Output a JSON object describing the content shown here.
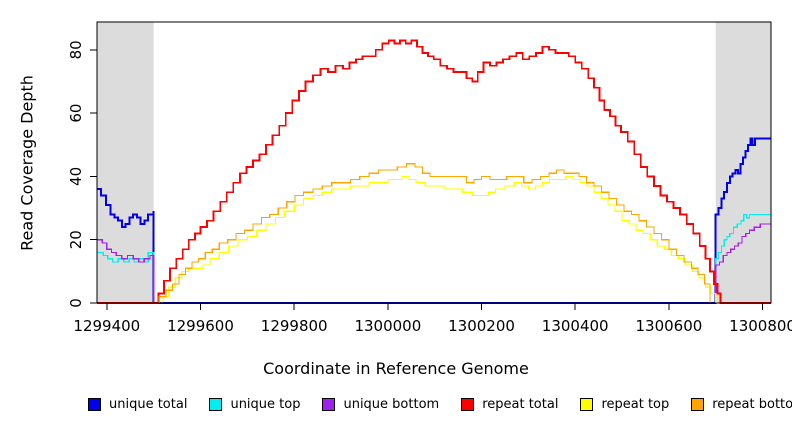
{
  "figure": {
    "xlabel": "Coordinate in Reference Genome",
    "ylabel": "Read Coverage Depth"
  },
  "chart_data": {
    "type": "line",
    "line_style": "step",
    "title": "",
    "xlabel": "Coordinate in Reference Genome",
    "ylabel": "Read Coverage Depth",
    "xlim": [
      1299379,
      1300818
    ],
    "ylim": [
      0,
      88.8
    ],
    "xticks": [
      1299400,
      1299600,
      1299800,
      1300000,
      1300200,
      1300400,
      1300600,
      1300800
    ],
    "yticks": [
      0,
      20,
      40,
      60,
      80
    ],
    "grid": false,
    "legend_position": "bottom",
    "shaded_regions": {
      "color": "#DCDCDC",
      "ranges": [
        [
          1299379,
          1299500
        ],
        [
          1300700,
          1300818
        ]
      ]
    },
    "series": [
      {
        "name": "unique total",
        "color": "#0000EE",
        "width": 2,
        "x": [
          1299379,
          1299388,
          1299398,
          1299408,
          1299416,
          1299424,
          1299432,
          1299440,
          1299448,
          1299456,
          1299464,
          1299472,
          1299480,
          1299488,
          1299500,
          1299500,
          1300700,
          1300700,
          1300706,
          1300712,
          1300718,
          1300724,
          1300730,
          1300736,
          1300742,
          1300748,
          1300753,
          1300758,
          1300764,
          1300769,
          1300774,
          1300779,
          1300784,
          1300818
        ],
        "y": [
          36,
          34,
          31,
          28,
          27,
          26,
          24,
          25,
          27,
          28,
          27,
          25,
          26,
          28,
          29,
          0,
          0,
          28,
          30,
          33,
          35,
          38,
          40,
          41,
          42,
          41,
          44,
          46,
          48,
          50,
          52,
          50,
          52,
          52
        ]
      },
      {
        "name": "unique top",
        "color": "#00EEEE",
        "width": 1.3,
        "x": [
          1299379,
          1299392,
          1299402,
          1299412,
          1299424,
          1299436,
          1299448,
          1299458,
          1299468,
          1299478,
          1299488,
          1299500,
          1299500,
          1300700,
          1300700,
          1300706,
          1300712,
          1300718,
          1300724,
          1300730,
          1300738,
          1300746,
          1300754,
          1300760,
          1300766,
          1300772,
          1300780,
          1300818
        ],
        "y": [
          16,
          15,
          14,
          13,
          14,
          13,
          14,
          13,
          14,
          13,
          16,
          16,
          0,
          0,
          14,
          16,
          18,
          20,
          21,
          22,
          24,
          25,
          26,
          28,
          27,
          28,
          28,
          28
        ]
      },
      {
        "name": "unique bottom",
        "color": "#A020F0",
        "width": 1.3,
        "x": [
          1299379,
          1299390,
          1299400,
          1299410,
          1299420,
          1299432,
          1299444,
          1299456,
          1299468,
          1299480,
          1299492,
          1299500,
          1299500,
          1300700,
          1300700,
          1300708,
          1300716,
          1300724,
          1300732,
          1300740,
          1300748,
          1300756,
          1300764,
          1300772,
          1300782,
          1300795,
          1300818
        ],
        "y": [
          20,
          19,
          17,
          16,
          15,
          14,
          15,
          14,
          13,
          14,
          15,
          15,
          0,
          0,
          12,
          13,
          15,
          16,
          17,
          18,
          19,
          21,
          22,
          23,
          24,
          25,
          25
        ]
      },
      {
        "name": "repeat total",
        "color": "#FF0000",
        "width": 1.8,
        "x": [
          1299379,
          1299500,
          1299510,
          1299522,
          1299535,
          1299548,
          1299562,
          1299575,
          1299588,
          1299600,
          1299614,
          1299628,
          1299642,
          1299656,
          1299670,
          1299684,
          1299698,
          1299712,
          1299726,
          1299740,
          1299754,
          1299768,
          1299782,
          1299796,
          1299810,
          1299824,
          1299840,
          1299856,
          1299872,
          1299888,
          1299904,
          1299918,
          1299932,
          1299946,
          1299960,
          1299974,
          1299988,
          1300002,
          1300014,
          1300026,
          1300038,
          1300050,
          1300062,
          1300074,
          1300086,
          1300098,
          1300112,
          1300126,
          1300140,
          1300154,
          1300168,
          1300180,
          1300192,
          1300204,
          1300218,
          1300232,
          1300246,
          1300260,
          1300274,
          1300288,
          1300302,
          1300316,
          1300330,
          1300344,
          1300358,
          1300372,
          1300386,
          1300400,
          1300414,
          1300428,
          1300440,
          1300452,
          1300462,
          1300474,
          1300486,
          1300498,
          1300512,
          1300526,
          1300540,
          1300554,
          1300568,
          1300582,
          1300596,
          1300610,
          1300624,
          1300638,
          1300652,
          1300666,
          1300678,
          1300688,
          1300696,
          1300704,
          1300710,
          1300818
        ],
        "y": [
          0,
          0,
          3,
          7,
          11,
          14,
          17,
          20,
          22,
          24,
          26,
          29,
          32,
          35,
          38,
          41,
          43,
          45,
          47,
          50,
          53,
          56,
          60,
          64,
          67,
          70,
          72,
          74,
          73,
          75,
          74,
          76,
          77,
          78,
          78,
          80,
          82,
          83,
          82,
          83,
          82,
          83,
          81,
          79,
          78,
          77,
          75,
          74,
          73,
          73,
          71,
          70,
          73,
          76,
          75,
          76,
          77,
          78,
          79,
          77,
          78,
          79,
          81,
          80,
          79,
          79,
          78,
          76,
          74,
          71,
          68,
          64,
          61,
          59,
          56,
          54,
          51,
          47,
          43,
          40,
          37,
          34,
          32,
          30,
          28,
          25,
          22,
          18,
          14,
          10,
          6,
          3,
          0,
          0
        ]
      },
      {
        "name": "repeat top",
        "color": "#FFFF00",
        "width": 1.2,
        "x": [
          1299379,
          1299505,
          1299518,
          1299532,
          1299546,
          1299560,
          1299575,
          1299590,
          1299605,
          1299620,
          1299640,
          1299660,
          1299680,
          1299700,
          1299720,
          1299740,
          1299760,
          1299780,
          1299800,
          1299820,
          1299840,
          1299860,
          1299880,
          1299900,
          1299920,
          1299940,
          1299960,
          1299980,
          1300000,
          1300015,
          1300030,
          1300045,
          1300060,
          1300080,
          1300100,
          1300120,
          1300140,
          1300160,
          1300180,
          1300200,
          1300215,
          1300230,
          1300250,
          1300270,
          1300285,
          1300300,
          1300315,
          1300330,
          1300345,
          1300360,
          1300380,
          1300395,
          1300410,
          1300425,
          1300440,
          1300455,
          1300470,
          1300485,
          1300500,
          1300515,
          1300530,
          1300545,
          1300560,
          1300575,
          1300590,
          1300605,
          1300620,
          1300635,
          1300650,
          1300665,
          1300678,
          1300690,
          1300700,
          1300818
        ],
        "y": [
          0,
          0,
          2,
          5,
          8,
          10,
          11,
          11,
          12,
          14,
          16,
          18,
          20,
          21,
          23,
          25,
          27,
          29,
          31,
          33,
          34,
          35,
          36,
          36,
          37,
          37,
          38,
          38,
          39,
          39,
          40,
          39,
          38,
          37,
          37,
          36,
          36,
          35,
          34,
          34,
          35,
          36,
          37,
          38,
          37,
          36,
          37,
          38,
          39,
          39,
          40,
          39,
          38,
          37,
          35,
          33,
          31,
          29,
          26,
          25,
          23,
          22,
          20,
          18,
          17,
          15,
          14,
          12,
          10,
          8,
          5,
          3,
          0,
          0
        ]
      },
      {
        "name": "repeat bottom",
        "color": "#FFA500",
        "width": 1.2,
        "x": [
          1299379,
          1299500,
          1299512,
          1299526,
          1299540,
          1299554,
          1299568,
          1299582,
          1299596,
          1299610,
          1299625,
          1299640,
          1299658,
          1299676,
          1299694,
          1299712,
          1299730,
          1299748,
          1299766,
          1299784,
          1299802,
          1299820,
          1299840,
          1299860,
          1299880,
          1299900,
          1299920,
          1299940,
          1299960,
          1299980,
          1300000,
          1300020,
          1300040,
          1300058,
          1300074,
          1300090,
          1300110,
          1300130,
          1300150,
          1300168,
          1300184,
          1300200,
          1300218,
          1300236,
          1300254,
          1300272,
          1300290,
          1300308,
          1300326,
          1300344,
          1300360,
          1300376,
          1300392,
          1300408,
          1300424,
          1300440,
          1300456,
          1300472,
          1300488,
          1300504,
          1300520,
          1300536,
          1300552,
          1300568,
          1300584,
          1300600,
          1300616,
          1300632,
          1300648,
          1300662,
          1300676,
          1300688,
          1300818
        ],
        "y": [
          0,
          0,
          2,
          4,
          6,
          9,
          11,
          13,
          14,
          16,
          17,
          19,
          20,
          22,
          23,
          25,
          27,
          28,
          30,
          32,
          34,
          35,
          36,
          37,
          38,
          38,
          39,
          40,
          41,
          42,
          42,
          43,
          44,
          43,
          41,
          40,
          40,
          40,
          40,
          38,
          39,
          40,
          39,
          39,
          40,
          40,
          38,
          39,
          40,
          41,
          42,
          41,
          41,
          40,
          38,
          37,
          35,
          33,
          31,
          29,
          28,
          26,
          24,
          22,
          20,
          17,
          15,
          13,
          11,
          9,
          6,
          0,
          0
        ]
      }
    ]
  }
}
